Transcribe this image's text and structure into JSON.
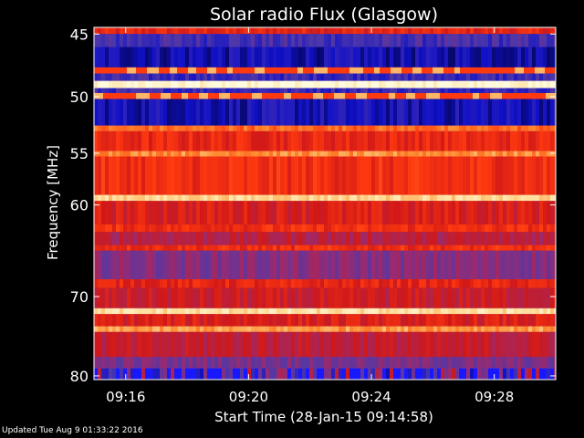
{
  "chart_data": {
    "type": "heatmap",
    "title": "Solar radio Flux (Glasgow)",
    "ylabel": "Frequency [MHz]",
    "xlabel": "Start Time (28-Jan-15 09:14:58)",
    "y_axis": {
      "min": 44.5,
      "max": 80.5,
      "scale": "log",
      "inverted": true,
      "ticks": [
        45,
        50,
        55,
        60,
        70,
        80
      ]
    },
    "x_axis": {
      "start": "09:14:58",
      "end": "09:30:00",
      "ticks": [
        "09:16",
        "09:20",
        "09:24",
        "09:28"
      ]
    },
    "colormap": [
      "#000010",
      "#1010c8",
      "#5038a8",
      "#9a2a70",
      "#d01818",
      "#ff3a10",
      "#ff8a30",
      "#ffd890",
      "#fffce0"
    ],
    "bands": [
      {
        "f0": 44.5,
        "f1": 45.0,
        "level": 0.55
      },
      {
        "f0": 45.0,
        "f1": 46.0,
        "level": 0.22
      },
      {
        "f0": 46.0,
        "f1": 47.6,
        "level": 0.12
      },
      {
        "f0": 47.6,
        "f1": 48.1,
        "level": 0.62,
        "dashed": true
      },
      {
        "f0": 48.1,
        "f1": 48.7,
        "level": 0.2
      },
      {
        "f0": 48.7,
        "f1": 49.3,
        "level": 0.98
      },
      {
        "f0": 49.3,
        "f1": 49.7,
        "level": 0.2
      },
      {
        "f0": 49.7,
        "f1": 50.2,
        "level": 0.62,
        "dashed": true
      },
      {
        "f0": 50.2,
        "f1": 52.5,
        "level": 0.13
      },
      {
        "f0": 52.5,
        "f1": 53.0,
        "level": 0.7
      },
      {
        "f0": 53.0,
        "f1": 54.8,
        "level": 0.56
      },
      {
        "f0": 54.8,
        "f1": 55.3,
        "level": 0.76
      },
      {
        "f0": 55.3,
        "f1": 59.0,
        "level": 0.58
      },
      {
        "f0": 59.0,
        "f1": 59.6,
        "level": 0.88
      },
      {
        "f0": 59.6,
        "f1": 62.0,
        "level": 0.52
      },
      {
        "f0": 62.0,
        "f1": 62.8,
        "level": 0.58
      },
      {
        "f0": 62.8,
        "f1": 64.2,
        "level": 0.44
      },
      {
        "f0": 64.2,
        "f1": 64.8,
        "level": 0.58
      },
      {
        "f0": 64.8,
        "f1": 68.0,
        "level": 0.34
      },
      {
        "f0": 68.0,
        "f1": 69.0,
        "level": 0.55
      },
      {
        "f0": 69.0,
        "f1": 71.4,
        "level": 0.48
      },
      {
        "f0": 71.4,
        "f1": 72.1,
        "level": 0.9
      },
      {
        "f0": 72.1,
        "f1": 73.6,
        "level": 0.52
      },
      {
        "f0": 73.6,
        "f1": 74.3,
        "level": 0.78
      },
      {
        "f0": 74.3,
        "f1": 77.5,
        "level": 0.46
      },
      {
        "f0": 77.5,
        "f1": 79.0,
        "level": 0.32
      },
      {
        "f0": 79.0,
        "f1": 80.5,
        "level": 0.26,
        "noisy_blue": true
      }
    ],
    "grid": false
  },
  "footer": "Updated Tue Aug  9 01:33:22 2016"
}
